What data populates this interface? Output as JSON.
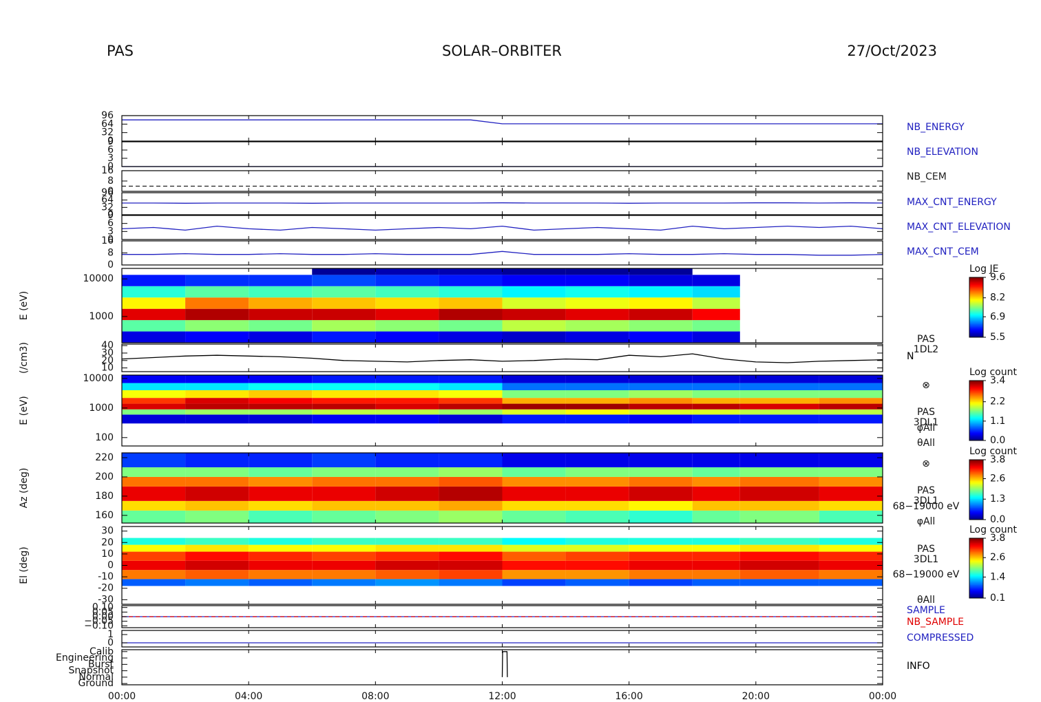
{
  "header": {
    "instrument": "PAS",
    "mission": "SOLAR–ORBITER",
    "date": "27/Oct/2023"
  },
  "chart_data": [
    {
      "type": "line",
      "xlim": [
        0,
        24
      ],
      "ylim": [
        0,
        96
      ],
      "yticks": [
        0,
        32,
        64,
        96
      ],
      "x": [
        0,
        1,
        2,
        3,
        4,
        5,
        6,
        7,
        8,
        9,
        10,
        11,
        12,
        13,
        14,
        15,
        16,
        17,
        18,
        19,
        20,
        21,
        22,
        23,
        24
      ],
      "series": [
        {
          "name": "NB_ENERGY",
          "color": "#2020c0",
          "values": [
            80,
            80,
            80,
            80,
            80,
            80,
            80,
            80,
            80,
            80,
            80,
            80,
            65,
            65,
            65,
            65,
            65,
            65,
            65,
            65,
            65,
            65,
            65,
            65,
            65
          ]
        }
      ]
    },
    {
      "type": "line",
      "xlim": [
        0,
        24
      ],
      "ylim": [
        0,
        9
      ],
      "yticks": [
        0,
        3,
        6,
        9
      ],
      "x": [
        0,
        24
      ],
      "series": [
        {
          "name": "NB_ELEVATION",
          "color": "#2020c0",
          "values": [
            0,
            0
          ]
        }
      ]
    },
    {
      "type": "line",
      "xlim": [
        0,
        24
      ],
      "ylim": [
        0,
        16
      ],
      "yticks": [
        0,
        8,
        16
      ],
      "x": [
        0,
        24
      ],
      "series": [
        {
          "name": "NB_CEM",
          "color": "#202020",
          "dashed": true,
          "values": [
            4,
            4
          ]
        }
      ]
    },
    {
      "type": "line",
      "xlim": [
        0,
        24
      ],
      "ylim": [
        0,
        96
      ],
      "yticks": [
        0,
        32,
        64,
        96
      ],
      "x": [
        0,
        1,
        2,
        3,
        4,
        5,
        6,
        7,
        8,
        9,
        10,
        11,
        12,
        13,
        14,
        15,
        16,
        17,
        18,
        19,
        20,
        21,
        22,
        23,
        24
      ],
      "series": [
        {
          "name": "MAX_CNT_ENERGY",
          "color": "#2020c0",
          "values": [
            51,
            51,
            50,
            51,
            51,
            51,
            50,
            51,
            51,
            51,
            51,
            51,
            52,
            51,
            51,
            51,
            50,
            51,
            51,
            51,
            52,
            52,
            51,
            52,
            51
          ]
        }
      ]
    },
    {
      "type": "line",
      "xlim": [
        0,
        24
      ],
      "ylim": [
        0,
        9
      ],
      "yticks": [
        0,
        3,
        6,
        9
      ],
      "x": [
        0,
        1,
        2,
        3,
        4,
        5,
        6,
        7,
        8,
        9,
        10,
        11,
        12,
        13,
        14,
        15,
        16,
        17,
        18,
        19,
        20,
        21,
        22,
        23,
        24
      ],
      "series": [
        {
          "name": "MAX_CNT_ELEVATION",
          "color": "#2020c0",
          "values": [
            4,
            4.5,
            3.5,
            5,
            4,
            3.5,
            4.5,
            4,
            3.5,
            4,
            4.5,
            4,
            5,
            3.5,
            4,
            4.5,
            4,
            3.5,
            5,
            4,
            4.5,
            5,
            4.5,
            5,
            4
          ]
        }
      ]
    },
    {
      "type": "line",
      "xlim": [
        0,
        24
      ],
      "ylim": [
        0,
        16
      ],
      "yticks": [
        0,
        8,
        16
      ],
      "x": [
        0,
        1,
        2,
        3,
        4,
        5,
        6,
        7,
        8,
        9,
        10,
        11,
        12,
        13,
        14,
        15,
        16,
        17,
        18,
        19,
        20,
        21,
        22,
        23,
        24
      ],
      "series": [
        {
          "name": "MAX_CNT_CEM",
          "color": "#2020c0",
          "values": [
            7,
            7,
            7.5,
            7,
            7,
            7.5,
            7,
            7,
            7.5,
            7,
            7,
            7,
            9,
            7,
            7,
            7,
            7.5,
            7,
            7,
            7.5,
            7,
            7,
            6.5,
            6.5,
            7
          ]
        }
      ]
    },
    {
      "type": "heatmap",
      "ylabel": "E (eV)",
      "log_y": true,
      "xlim": [
        0,
        24
      ],
      "ylim": [
        200,
        19000
      ],
      "yticks": [
        1000,
        10000
      ],
      "x_edges": [
        0,
        2,
        4,
        6,
        8,
        10,
        12,
        14,
        16,
        18,
        19.5,
        22,
        24
      ],
      "y_edges": [
        200,
        400,
        800,
        1600,
        3200,
        6400,
        12800,
        19000
      ],
      "z": [
        [
          5.9,
          6.0,
          5.9,
          6.1,
          6.0,
          5.9,
          5.8,
          5.9,
          6.0,
          5.9,
          null,
          null
        ],
        [
          7.4,
          7.6,
          7.5,
          7.7,
          7.6,
          7.5,
          7.8,
          7.7,
          7.6,
          7.5,
          null,
          null
        ],
        [
          9.2,
          9.4,
          9.3,
          9.3,
          9.2,
          9.4,
          9.3,
          9.2,
          9.3,
          9.1,
          null,
          null
        ],
        [
          8.1,
          8.6,
          8.4,
          8.3,
          8.2,
          8.3,
          7.9,
          8.0,
          8.1,
          7.8,
          null,
          null
        ],
        [
          7.2,
          7.4,
          7.3,
          7.4,
          7.3,
          7.2,
          7.0,
          7.1,
          7.0,
          6.9,
          null,
          null
        ],
        [
          6.1,
          6.2,
          6.2,
          6.3,
          6.2,
          6.1,
          6.0,
          6.0,
          5.9,
          5.9,
          null,
          null
        ],
        [
          null,
          null,
          null,
          5.6,
          5.7,
          5.7,
          5.6,
          5.6,
          5.6,
          null,
          null,
          null
        ]
      ],
      "colorbar": {
        "title": "Log JE",
        "lim": [
          5.5,
          9.6
        ],
        "ticks": [
          5.5,
          6.9,
          8.2,
          9.6
        ]
      }
    },
    {
      "type": "line",
      "ylabel": "(/cm3)",
      "xlim": [
        0,
        24
      ],
      "ylim": [
        5,
        42
      ],
      "yticks": [
        10,
        20,
        30,
        40
      ],
      "labels": [
        "PAS",
        "1DL2"
      ],
      "x": [
        0,
        1,
        2,
        3,
        4,
        5,
        6,
        7,
        8,
        9,
        10,
        11,
        12,
        13,
        14,
        15,
        16,
        17,
        18,
        19,
        20,
        21,
        22,
        23,
        24
      ],
      "series": [
        {
          "name": "N",
          "color": "#000000",
          "values": [
            22,
            24,
            26,
            27,
            26,
            25,
            23,
            20,
            19,
            18,
            20,
            21,
            19,
            20,
            22,
            21,
            27,
            25,
            29,
            22,
            18,
            17,
            19,
            20,
            21
          ]
        }
      ]
    },
    {
      "type": "heatmap",
      "ylabel": "E (eV)",
      "log_y": true,
      "xlim": [
        0,
        24
      ],
      "ylim": [
        52,
        13000
      ],
      "yticks": [
        100,
        1000,
        10000
      ],
      "labels": [
        "⊗",
        "PAS",
        "3DL1",
        "φAll",
        "θAll"
      ],
      "x_edges": [
        0,
        2,
        4,
        6,
        8,
        10,
        12,
        14,
        16,
        18,
        19.5,
        22,
        24
      ],
      "y_edges": [
        300,
        600,
        900,
        1400,
        2200,
        4000,
        7000,
        13000
      ],
      "z": [
        [
          0.3,
          0.3,
          0.3,
          0.4,
          0.4,
          0.3,
          0.5,
          0.5,
          0.4,
          0.5,
          0.5,
          0.5
        ],
        [
          1.7,
          1.8,
          1.8,
          1.9,
          1.9,
          1.8,
          2.0,
          2.1,
          2.0,
          2.0,
          1.9,
          1.9
        ],
        [
          3.1,
          3.2,
          3.2,
          3.2,
          3.1,
          3.2,
          3.3,
          3.3,
          3.2,
          3.2,
          3.1,
          3.2
        ],
        [
          2.8,
          3.1,
          3.0,
          2.9,
          2.9,
          2.8,
          2.4,
          2.4,
          2.5,
          2.4,
          2.4,
          2.5
        ],
        [
          2.1,
          2.2,
          2.3,
          2.2,
          2.2,
          2.1,
          1.7,
          1.7,
          1.8,
          1.7,
          1.7,
          1.7
        ],
        [
          1.2,
          1.2,
          1.3,
          1.3,
          1.3,
          1.2,
          0.8,
          0.8,
          0.8,
          0.8,
          0.8,
          0.8
        ],
        [
          0.4,
          0.4,
          0.4,
          0.5,
          0.5,
          0.5,
          0.3,
          0.3,
          0.3,
          0.3,
          0.3,
          0.3
        ]
      ],
      "colorbar": {
        "title": "Log count",
        "lim": [
          0,
          3.4
        ],
        "ticks": [
          {
            "value": 0,
            "label": "0.0"
          },
          1.1,
          2.2,
          3.4
        ]
      }
    },
    {
      "type": "heatmap",
      "ylabel": "Az (deg)",
      "xlim": [
        0,
        24
      ],
      "ylim": [
        152,
        225
      ],
      "yticks": [
        160,
        180,
        200,
        220
      ],
      "labels": [
        "⊗",
        "PAS",
        "3DL1",
        "68−19000 eV",
        "φAll"
      ],
      "x_edges": [
        0,
        2,
        4,
        6,
        8,
        10,
        12,
        14,
        16,
        18,
        19.5,
        22,
        24
      ],
      "y_edges": [
        152,
        165,
        175,
        190,
        200,
        210,
        225
      ],
      "z": [
        [
          1.8,
          1.9,
          1.7,
          1.8,
          1.9,
          2.0,
          1.8,
          1.7,
          1.6,
          1.8,
          1.9,
          1.7
        ],
        [
          2.5,
          2.6,
          2.5,
          2.6,
          2.6,
          2.7,
          2.5,
          2.5,
          2.4,
          2.6,
          2.6,
          2.5
        ],
        [
          3.4,
          3.5,
          3.4,
          3.4,
          3.5,
          3.6,
          3.4,
          3.4,
          3.5,
          3.4,
          3.5,
          3.4
        ],
        [
          2.9,
          2.9,
          2.8,
          2.9,
          2.9,
          3.0,
          2.8,
          2.8,
          2.9,
          2.8,
          2.9,
          2.8
        ],
        [
          1.9,
          1.9,
          1.8,
          1.9,
          1.9,
          2.0,
          1.8,
          1.9,
          1.9,
          1.8,
          1.9,
          1.9
        ],
        [
          0.7,
          0.6,
          0.6,
          0.7,
          0.6,
          0.6,
          0.4,
          0.4,
          0.4,
          0.4,
          0.4,
          0.4
        ]
      ],
      "colorbar": {
        "title": "Log count",
        "lim": [
          0,
          3.8
        ],
        "ticks": [
          {
            "value": 0,
            "label": "0.0"
          },
          1.3,
          2.6,
          3.8
        ]
      }
    },
    {
      "type": "heatmap",
      "ylabel": "El (deg)",
      "xlim": [
        0,
        24
      ],
      "ylim": [
        -34,
        34
      ],
      "yticks": [
        -30,
        -20,
        -10,
        0,
        10,
        20,
        30
      ],
      "labels": [
        "PAS",
        "3DL1",
        "68−19000 eV",
        "θAll"
      ],
      "x_edges": [
        0,
        2,
        4,
        6,
        8,
        10,
        12,
        14,
        16,
        18,
        19.5,
        22,
        24
      ],
      "y_edges": [
        -18,
        -12,
        -4,
        4,
        12,
        18,
        24
      ],
      "z": [
        [
          0.9,
          1.0,
          0.9,
          1.0,
          1.1,
          1.0,
          0.8,
          0.9,
          0.8,
          0.9,
          0.9,
          0.9
        ],
        [
          2.9,
          3.0,
          2.9,
          2.9,
          3.0,
          3.1,
          2.8,
          2.8,
          2.9,
          2.9,
          3.0,
          2.9
        ],
        [
          3.4,
          3.5,
          3.4,
          3.4,
          3.5,
          3.5,
          3.3,
          3.3,
          3.4,
          3.4,
          3.5,
          3.4
        ],
        [
          3.1,
          3.3,
          3.2,
          3.1,
          3.2,
          3.3,
          3.0,
          3.1,
          3.2,
          3.2,
          3.3,
          3.2
        ],
        [
          2.4,
          2.5,
          2.4,
          2.4,
          2.5,
          2.5,
          2.3,
          2.3,
          2.4,
          2.4,
          2.5,
          2.4
        ],
        [
          1.6,
          1.7,
          1.6,
          1.7,
          1.7,
          1.7,
          1.5,
          1.6,
          1.6,
          1.6,
          1.7,
          1.6
        ]
      ],
      "colorbar": {
        "title": "Log count",
        "lim": [
          0.1,
          3.8
        ],
        "ticks": [
          0.1,
          1.4,
          2.6,
          3.8
        ]
      }
    },
    {
      "type": "line",
      "xlim": [
        0,
        24
      ],
      "ylim": [
        -0.12,
        0.12
      ],
      "yticks": [
        {
          "value": -0.1,
          "label": "−0.10"
        },
        {
          "value": -0.05,
          "label": "−0.05"
        },
        {
          "value": 0,
          "label": "0.00"
        },
        {
          "value": 0.05,
          "label": "0.05"
        },
        {
          "value": 0.1,
          "label": "0.10"
        }
      ],
      "x": [
        0,
        24
      ],
      "series": [
        {
          "name": "SAMPLE",
          "color": "#2020c0",
          "values": [
            0,
            0
          ]
        },
        {
          "name": "NB_SAMPLE",
          "color": "#e00000",
          "dashed": true,
          "values": [
            0,
            0
          ]
        }
      ]
    },
    {
      "type": "line",
      "xlim": [
        0,
        24
      ],
      "ylim": [
        -0.5,
        1.5
      ],
      "yticks": [
        0,
        1
      ],
      "x": [
        0,
        24
      ],
      "series": [
        {
          "name": "COMPRESSED",
          "color": "#2020c0",
          "values": [
            0,
            0
          ]
        }
      ]
    },
    {
      "type": "line",
      "xlim": [
        0,
        24
      ],
      "ylim": [
        -0.2,
        5.3
      ],
      "yticks": [
        {
          "value": 0,
          "label": "Ground"
        },
        {
          "value": 1,
          "label": "Normal"
        },
        {
          "value": 2,
          "label": "Snapshot"
        },
        {
          "value": 3,
          "label": "Burst"
        },
        {
          "value": 4,
          "label": "Engineering"
        },
        {
          "value": 5,
          "label": "Calib"
        }
      ],
      "xticks": [
        {
          "value": 0,
          "label": "00:00"
        },
        {
          "value": 4,
          "label": "04:00"
        },
        {
          "value": 8,
          "label": "08:00"
        },
        {
          "value": 12,
          "label": "12:00"
        },
        {
          "value": 16,
          "label": "16:00"
        },
        {
          "value": 20,
          "label": "20:00"
        },
        {
          "value": 24,
          "label": "00:00"
        }
      ],
      "x": [
        12,
        12.01,
        12.15,
        12.16
      ],
      "series": [
        {
          "name": "INFO",
          "color": "#000000",
          "values": [
            1,
            5,
            5,
            1
          ]
        }
      ]
    }
  ]
}
